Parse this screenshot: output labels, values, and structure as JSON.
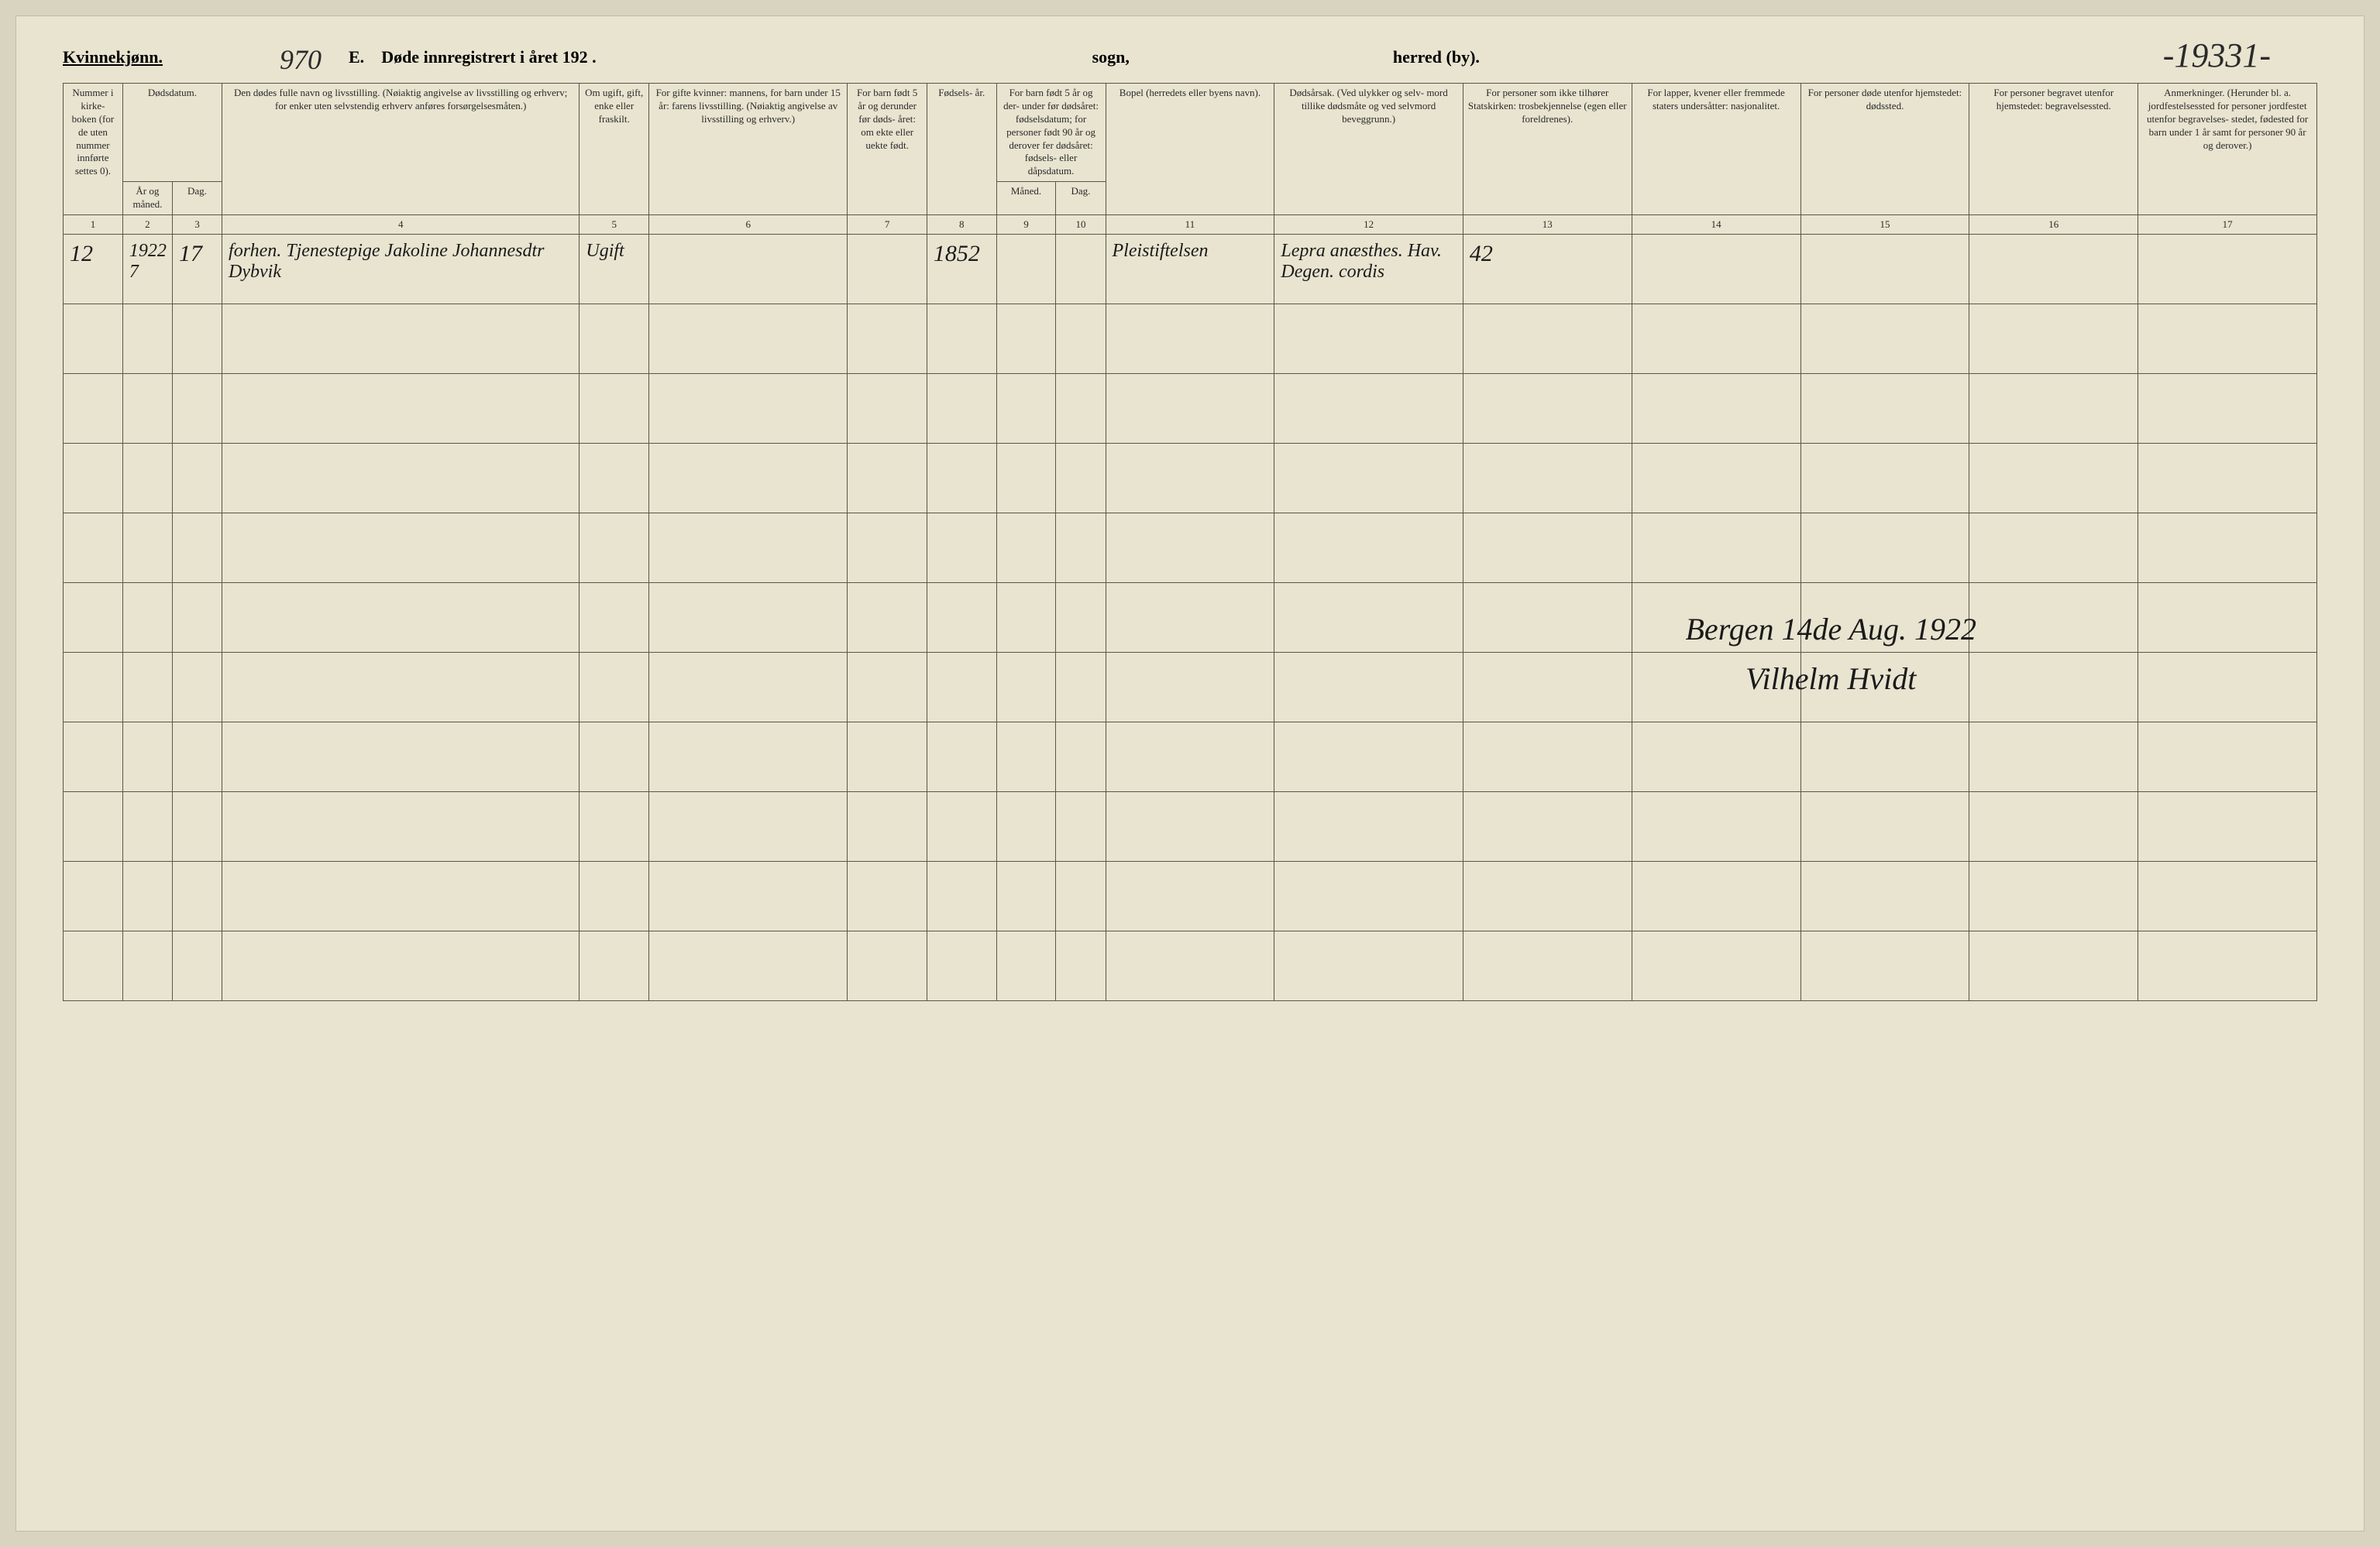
{
  "header": {
    "gender_label": "Kvinnekjønn.",
    "handwritten_top_left": "970",
    "title_prefix": "E.",
    "title_main": "Døde innregistrert i året 192",
    "title_blank": ".",
    "sogn_label": "sogn,",
    "herred_label": "herred (by).",
    "handwritten_top_right": "-19331-"
  },
  "columns": {
    "c1": "Nummer i kirke- boken (for de uten nummer innførte settes 0).",
    "c2_top": "Dødsdatum.",
    "c2": "År og måned.",
    "c3": "Dag.",
    "c4": "Den dødes fulle navn og livsstilling. (Nøiaktig angivelse av livsstilling og erhverv; for enker uten selvstendig erhverv anføres forsørgelsesmåten.)",
    "c5": "Om ugift, gift, enke eller fraskilt.",
    "c6": "For gifte kvinner: mannens, for barn under 15 år: farens livsstilling. (Nøiaktig angivelse av livsstilling og erhverv.)",
    "c7": "For barn født 5 år og derunder før døds- året: om ekte eller uekte født.",
    "c8": "Fødsels- år.",
    "c9_top": "For barn født 5 år og der- under før dødsåret: fødselsdatum; for personer født 90 år og derover fer dødsåret: fødsels- eller dåpsdatum.",
    "c9": "Måned.",
    "c10": "Dag.",
    "c11": "Bopel (herredets eller byens navn).",
    "c12": "Dødsårsak. (Ved ulykker og selv- mord tillike dødsmåte og ved selvmord beveggrunn.)",
    "c13": "For personer som ikke tilhører Statskirken: trosbekjennelse (egen eller foreldrenes).",
    "c14": "For lapper, kvener eller fremmede staters undersåtter: nasjonalitet.",
    "c15": "For personer døde utenfor hjemstedet: dødssted.",
    "c16": "For personer begravet utenfor hjemstedet: begravelsessted.",
    "c17": "Anmerkninger. (Herunder bl. a. jordfestelsessted for personer jordfestet utenfor begravelses- stedet, fødested for barn under 1 år samt for personer 90 år og derover.)"
  },
  "colnums": [
    "1",
    "2",
    "3",
    "4",
    "5",
    "6",
    "7",
    "8",
    "9",
    "10",
    "11",
    "12",
    "13",
    "14",
    "15",
    "16",
    "17"
  ],
  "row1": {
    "num": "12",
    "year_month": "1922 7",
    "day": "17",
    "name": "forhen. Tjenestepige Jakoline Johannesdtr Dybvik",
    "marital": "Ugift",
    "birth_year": "1852",
    "residence": "Pleistiftelsen",
    "cause": "Lepra anæsthes. Hav. Degen. cordis",
    "col13": "42"
  },
  "signature": {
    "place_date": "Bergen 14de Aug. 1922",
    "name": "Vilhelm Hvidt"
  },
  "empty_row_count": 10,
  "colors": {
    "page_bg": "#e8e4d0",
    "border": "#5a5648",
    "ink": "#1a1a1a"
  }
}
